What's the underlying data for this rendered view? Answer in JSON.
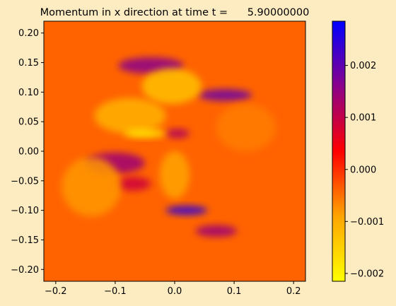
{
  "chart_data": {
    "type": "heatmap",
    "title": "Momentum in x direction at time t =      5.90000000",
    "xlabel": "",
    "ylabel": "",
    "xlim": [
      -0.22,
      0.22
    ],
    "ylim": [
      -0.22,
      0.22
    ],
    "x_ticks": [
      -0.2,
      -0.1,
      0.0,
      0.1,
      0.2
    ],
    "x_tick_labels": [
      "−0.2",
      "−0.1",
      "0.0",
      "0.1",
      "0.2"
    ],
    "y_ticks": [
      0.2,
      0.15,
      0.1,
      0.05,
      0.0,
      -0.05,
      -0.1,
      -0.15,
      -0.2
    ],
    "y_tick_labels": [
      "0.20",
      "0.15",
      "0.10",
      "0.05",
      "0.00",
      "−0.05",
      "−0.10",
      "−0.15",
      "−0.20"
    ],
    "colorbar": {
      "range": [
        -0.00215,
        0.00285
      ],
      "ticks": [
        0.002,
        0.001,
        0.0,
        -0.001,
        -0.002
      ],
      "tick_labels": [
        "0.002",
        "0.001",
        "0.000",
        "−0.001",
        "−0.002"
      ],
      "colormap": [
        "#ffff00",
        "#ffa500",
        "#ff0000",
        "#8b008b",
        "#0000ff"
      ]
    },
    "background_value": -0.0004,
    "features": [
      {
        "kind": "blob",
        "x": -0.04,
        "y": 0.145,
        "rx": 0.055,
        "ry": 0.014,
        "value": 0.0016
      },
      {
        "kind": "blob",
        "x": 0.085,
        "y": 0.095,
        "rx": 0.045,
        "ry": 0.01,
        "value": 0.0019
      },
      {
        "kind": "blob",
        "x": -0.1,
        "y": -0.02,
        "rx": 0.05,
        "ry": 0.018,
        "value": 0.0014
      },
      {
        "kind": "blob",
        "x": -0.07,
        "y": -0.055,
        "rx": 0.03,
        "ry": 0.012,
        "value": 0.0009
      },
      {
        "kind": "blob",
        "x": 0.07,
        "y": -0.135,
        "rx": 0.035,
        "ry": 0.01,
        "value": 0.0014
      },
      {
        "kind": "blob",
        "x": 0.02,
        "y": -0.1,
        "rx": 0.035,
        "ry": 0.008,
        "value": 0.0024
      },
      {
        "kind": "blob",
        "x": 0.005,
        "y": 0.03,
        "rx": 0.02,
        "ry": 0.008,
        "value": 0.0012
      },
      {
        "kind": "blob",
        "x": -0.005,
        "y": 0.11,
        "rx": 0.05,
        "ry": 0.03,
        "value": -0.0013
      },
      {
        "kind": "blob",
        "x": -0.075,
        "y": 0.06,
        "rx": 0.06,
        "ry": 0.03,
        "value": -0.0011
      },
      {
        "kind": "blob",
        "x": -0.05,
        "y": 0.03,
        "rx": 0.035,
        "ry": 0.007,
        "value": -0.002
      },
      {
        "kind": "blob",
        "x": -0.14,
        "y": -0.06,
        "rx": 0.05,
        "ry": 0.05,
        "value": -0.0008
      },
      {
        "kind": "blob",
        "x": 0.0,
        "y": -0.04,
        "rx": 0.025,
        "ry": 0.04,
        "value": -0.0009
      },
      {
        "kind": "blob",
        "x": 0.12,
        "y": 0.04,
        "rx": 0.05,
        "ry": 0.04,
        "value": -0.0006
      }
    ]
  }
}
